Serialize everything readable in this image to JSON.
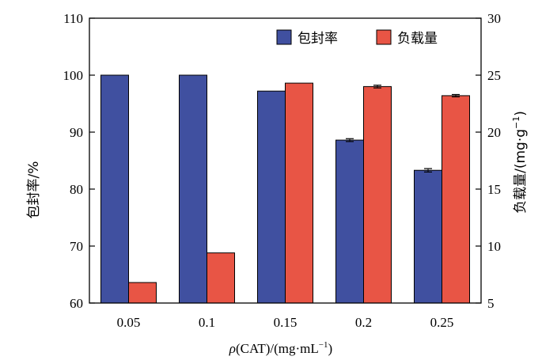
{
  "chart_data": {
    "type": "bar",
    "categories": [
      "0.05",
      "0.1",
      "0.15",
      "0.2",
      "0.25"
    ],
    "xlabel_italic": "ρ",
    "xlabel_main": "(CAT)/(mg·mL",
    "xlabel_sup": "−1",
    "xlabel_end": ")",
    "ylabel_left": "包封率/%",
    "ylabel_right": "负载量/(mg·g",
    "ylabel_right_sup": "−1",
    "ylabel_right_end": ")",
    "ylim_left": [
      60,
      110
    ],
    "yticks_left": [
      "60",
      "70",
      "80",
      "90",
      "100",
      "110"
    ],
    "ylim_right": [
      5,
      30
    ],
    "yticks_right": [
      "5",
      "10",
      "15",
      "20",
      "25",
      "30"
    ],
    "legend_position": "top-right",
    "series": [
      {
        "name": "包封率",
        "axis": "left",
        "color": "#4050a0",
        "values": [
          100,
          100,
          97.2,
          88.6,
          83.3
        ],
        "errors": [
          0,
          0,
          0,
          0.25,
          0.3
        ]
      },
      {
        "name": "负载量",
        "axis": "right",
        "color": "#e85545",
        "values": [
          6.8,
          9.4,
          24.3,
          24,
          23.2
        ],
        "errors": [
          0,
          0,
          0,
          0.12,
          0.1
        ]
      }
    ]
  }
}
